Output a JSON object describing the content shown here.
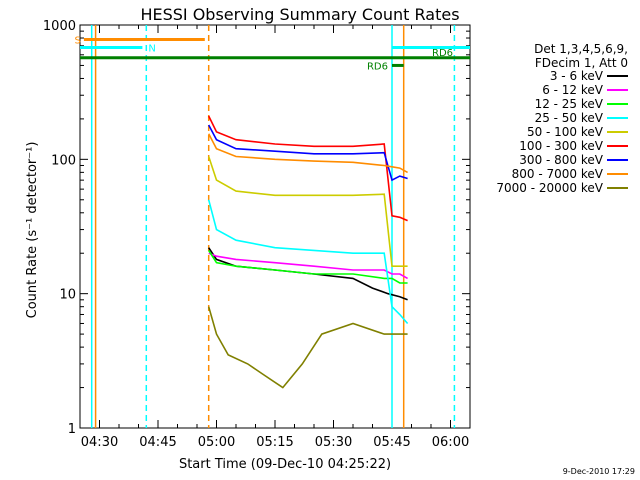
{
  "chart_data": {
    "type": "line",
    "title": "HESSI Observing Summary Count Rates",
    "xlabel": "Start Time (09-Dec-10 04:25:22)",
    "ylabel": "Count Rate (s⁻¹ detector⁻¹)",
    "yscale": "log",
    "ylim": [
      1,
      1000
    ],
    "xlim": [
      "04:25",
      "06:05"
    ],
    "x_ticks": [
      "04:30",
      "04:45",
      "05:00",
      "05:15",
      "05:30",
      "05:45",
      "06:00"
    ],
    "y_ticks": [
      "1",
      "10",
      "100",
      "1000"
    ],
    "legend_header": [
      "Det 1,3,4,5,6,9,",
      "FDecim 1, Att 0"
    ],
    "legend_position": "right",
    "footer": "9-Dec-2010 17:29",
    "series": [
      {
        "name": "3 - 6 keV",
        "color": "#000000",
        "x": [
          "04:58",
          "05:00",
          "05:05",
          "05:15",
          "05:25",
          "05:35",
          "05:40",
          "05:44",
          "05:47",
          "05:49"
        ],
        "y": [
          22,
          18,
          16,
          15,
          14,
          13,
          11,
          10,
          9.5,
          9
        ]
      },
      {
        "name": "6 - 12 keV",
        "color": "#ff00ff",
        "x": [
          "04:58",
          "05:00",
          "05:05",
          "05:15",
          "05:25",
          "05:35",
          "05:43",
          "05:45",
          "05:47",
          "05:49"
        ],
        "y": [
          20,
          19,
          18,
          17,
          16,
          15,
          15,
          14,
          14,
          13
        ]
      },
      {
        "name": "12 - 25 keV",
        "color": "#00ff00",
        "x": [
          "04:58",
          "05:00",
          "05:05",
          "05:15",
          "05:25",
          "05:35",
          "05:43",
          "05:45",
          "05:47",
          "05:49"
        ],
        "y": [
          21,
          17,
          16,
          15,
          14,
          14,
          13,
          13,
          12,
          12
        ]
      },
      {
        "name": "25 - 50 keV",
        "color": "#00ffff",
        "x": [
          "04:58",
          "05:00",
          "05:05",
          "05:15",
          "05:25",
          "05:35",
          "05:43",
          "05:45",
          "05:47",
          "05:49"
        ],
        "y": [
          50,
          30,
          25,
          22,
          21,
          20,
          20,
          8,
          7,
          6
        ]
      },
      {
        "name": "50 - 100 keV",
        "color": "#cccc00",
        "x": [
          "04:58",
          "05:00",
          "05:05",
          "05:15",
          "05:25",
          "05:35",
          "05:43",
          "05:45",
          "05:47",
          "05:49"
        ],
        "y": [
          105,
          70,
          58,
          54,
          54,
          54,
          55,
          16,
          16,
          16
        ]
      },
      {
        "name": "100 - 300 keV",
        "color": "#ff0000",
        "x": [
          "04:58",
          "05:00",
          "05:05",
          "05:15",
          "05:25",
          "05:35",
          "05:43",
          "05:45",
          "05:47",
          "05:49"
        ],
        "y": [
          210,
          160,
          140,
          130,
          125,
          125,
          130,
          38,
          37,
          35
        ]
      },
      {
        "name": "300 - 800 keV",
        "color": "#0000ff",
        "x": [
          "04:58",
          "05:00",
          "05:05",
          "05:15",
          "05:25",
          "05:35",
          "05:43",
          "05:45",
          "05:47",
          "05:49"
        ],
        "y": [
          180,
          140,
          120,
          115,
          110,
          110,
          112,
          70,
          75,
          72
        ]
      },
      {
        "name": "800 - 7000 keV",
        "color": "#ff8c00",
        "x": [
          "04:58",
          "05:00",
          "05:05",
          "05:15",
          "05:25",
          "05:35",
          "05:43",
          "05:45",
          "05:47",
          "05:49"
        ],
        "y": [
          155,
          120,
          105,
          100,
          97,
          95,
          90,
          88,
          86,
          80
        ]
      },
      {
        "name": "7000 - 20000 keV",
        "color": "#808000",
        "x": [
          "04:58",
          "05:00",
          "05:03",
          "05:08",
          "05:12",
          "05:17",
          "05:22",
          "05:27",
          "05:35",
          "05:43",
          "05:45",
          "05:47",
          "05:49"
        ],
        "y": [
          8,
          5,
          3.5,
          3,
          2.5,
          2,
          3,
          5,
          6,
          5,
          5,
          5,
          5
        ]
      }
    ],
    "state_bars": [
      {
        "label": "S",
        "color": "#ff8c00",
        "x": [
          "04:26",
          "04:57"
        ],
        "y": 780
      },
      {
        "label": "N",
        "color": "#00ffff",
        "x": [
          "04:25",
          "04:41"
        ],
        "y": 680
      },
      {
        "label": "RD6",
        "color": "#008000",
        "x": [
          "04:25",
          "06:05"
        ],
        "y": 570
      },
      {
        "label": "RD6",
        "color": "#008000",
        "x": [
          "05:45",
          "05:48"
        ],
        "y": 500
      },
      {
        "label": "",
        "color": "#00ffff",
        "x": [
          "05:45",
          "06:05"
        ],
        "y": 680
      }
    ],
    "vertical_lines": [
      {
        "x": "04:28",
        "color": "#00ffff",
        "dashed": false
      },
      {
        "x": "04:29",
        "color": "#ff8c00",
        "dashed": false
      },
      {
        "x": "04:42",
        "color": "#00ffff",
        "dashed": true
      },
      {
        "x": "04:58",
        "color": "#ff8c00",
        "dashed": true
      },
      {
        "x": "05:45",
        "color": "#00ffff",
        "dashed": false
      },
      {
        "x": "05:48",
        "color": "#ff8c00",
        "dashed": false
      },
      {
        "x": "06:01",
        "color": "#00ffff",
        "dashed": true
      }
    ]
  }
}
